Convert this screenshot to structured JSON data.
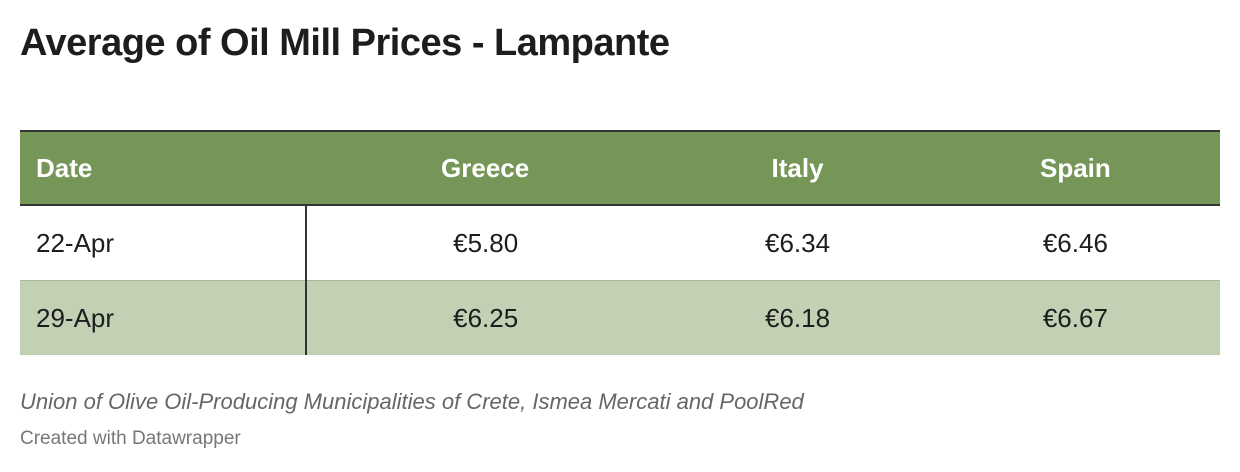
{
  "header": {
    "title": "Average of Oil Mill Prices - Lampante"
  },
  "table": {
    "columns": [
      "Date",
      "Greece",
      "Italy",
      "Spain"
    ],
    "rows": [
      [
        "22-Apr",
        "€5.80",
        "€6.34",
        "€6.46"
      ],
      [
        "29-Apr",
        "€6.25",
        "€6.18",
        "€6.67"
      ]
    ]
  },
  "footer": {
    "source": "Union of Olive Oil-Producing Municipalities of Crete, Ismea Mercati and PoolRed",
    "credit": "Created with Datawrapper"
  }
}
